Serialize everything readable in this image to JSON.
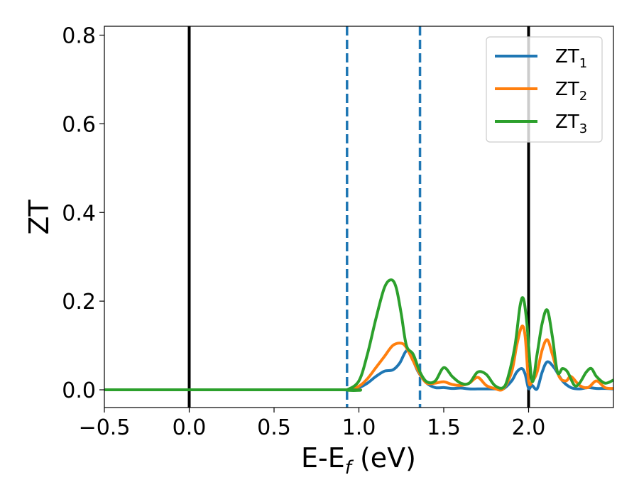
{
  "chart_data": {
    "type": "line",
    "xlabel": "E-E",
    "xlabel_sub": "f",
    "xlabel_unit": " (eV)",
    "ylabel": "ZT",
    "xlim": [
      -0.5,
      2.5
    ],
    "ylim": [
      -0.04,
      0.82
    ],
    "xticks": [
      -0.5,
      0.0,
      0.5,
      1.0,
      1.5,
      2.0
    ],
    "xtick_labels": [
      "−0.5",
      "0.0",
      "0.5",
      "1.0",
      "1.5",
      "2.0"
    ],
    "yticks": [
      0.0,
      0.2,
      0.4,
      0.6,
      0.8
    ],
    "ytick_labels": [
      "0.0",
      "0.2",
      "0.4",
      "0.6",
      "0.8"
    ],
    "grid": false,
    "legend_position": "top-right",
    "vlines": [
      {
        "x": 0.0,
        "style": "solid",
        "color": "#000000"
      },
      {
        "x": 2.0,
        "style": "solid",
        "color": "#000000"
      },
      {
        "x": 0.93,
        "style": "dashed",
        "color": "#1f77b4"
      },
      {
        "x": 1.36,
        "style": "dashed",
        "color": "#1f77b4"
      }
    ],
    "series": [
      {
        "name": "ZT",
        "sub": "1",
        "color": "#1f77b4",
        "x": [
          -0.5,
          0.9,
          0.93,
          1.0,
          1.05,
          1.1,
          1.15,
          1.2,
          1.24,
          1.28,
          1.31,
          1.35,
          1.4,
          1.45,
          1.5,
          1.55,
          1.6,
          1.65,
          1.7,
          1.75,
          1.8,
          1.85,
          1.9,
          1.93,
          1.96,
          1.98,
          2.0,
          2.02,
          2.05,
          2.08,
          2.11,
          2.15,
          2.2,
          2.25,
          2.3,
          2.35,
          2.4,
          2.45,
          2.5
        ],
        "y": [
          0.0,
          0.0,
          0.0,
          0.005,
          0.015,
          0.03,
          0.042,
          0.045,
          0.06,
          0.088,
          0.075,
          0.04,
          0.015,
          0.005,
          0.005,
          0.003,
          0.004,
          0.002,
          0.002,
          0.002,
          0.002,
          0.002,
          0.02,
          0.04,
          0.048,
          0.035,
          0.003,
          0.01,
          0.002,
          0.04,
          0.063,
          0.05,
          0.02,
          0.005,
          0.002,
          0.005,
          0.003,
          0.003,
          0.002
        ]
      },
      {
        "name": "ZT",
        "sub": "2",
        "color": "#ff7f0e",
        "x": [
          -0.5,
          0.9,
          0.93,
          1.0,
          1.05,
          1.1,
          1.15,
          1.2,
          1.25,
          1.28,
          1.32,
          1.36,
          1.4,
          1.45,
          1.5,
          1.55,
          1.6,
          1.65,
          1.7,
          1.75,
          1.8,
          1.85,
          1.9,
          1.93,
          1.96,
          1.98,
          2.0,
          2.02,
          2.05,
          2.08,
          2.11,
          2.14,
          2.18,
          2.22,
          2.25,
          2.3,
          2.35,
          2.4,
          2.45,
          2.5
        ],
        "y": [
          0.0,
          0.0,
          0.0,
          0.008,
          0.025,
          0.05,
          0.075,
          0.1,
          0.105,
          0.095,
          0.065,
          0.035,
          0.015,
          0.015,
          0.018,
          0.012,
          0.01,
          0.015,
          0.028,
          0.01,
          0.003,
          0.002,
          0.04,
          0.1,
          0.143,
          0.12,
          0.02,
          0.018,
          0.04,
          0.09,
          0.113,
          0.08,
          0.03,
          0.02,
          0.03,
          0.01,
          0.005,
          0.02,
          0.005,
          0.003
        ]
      },
      {
        "name": "ZT",
        "sub": "3",
        "color": "#2ca02c",
        "x": [
          -0.5,
          0.9,
          0.93,
          1.0,
          1.05,
          1.1,
          1.15,
          1.19,
          1.22,
          1.25,
          1.28,
          1.32,
          1.36,
          1.4,
          1.45,
          1.5,
          1.55,
          1.6,
          1.65,
          1.7,
          1.75,
          1.8,
          1.85,
          1.88,
          1.92,
          1.95,
          1.97,
          1.99,
          2.02,
          2.05,
          2.08,
          2.11,
          2.14,
          2.17,
          2.2,
          2.23,
          2.27,
          2.3,
          2.34,
          2.37,
          2.4,
          2.45,
          2.5
        ],
        "y": [
          0.0,
          0.0,
          0.0,
          0.02,
          0.08,
          0.16,
          0.23,
          0.248,
          0.23,
          0.17,
          0.1,
          0.08,
          0.04,
          0.018,
          0.02,
          0.05,
          0.03,
          0.015,
          0.015,
          0.04,
          0.035,
          0.01,
          0.005,
          0.03,
          0.1,
          0.19,
          0.205,
          0.15,
          0.02,
          0.08,
          0.15,
          0.18,
          0.12,
          0.04,
          0.048,
          0.04,
          0.01,
          0.015,
          0.04,
          0.048,
          0.03,
          0.015,
          0.022
        ]
      }
    ]
  }
}
